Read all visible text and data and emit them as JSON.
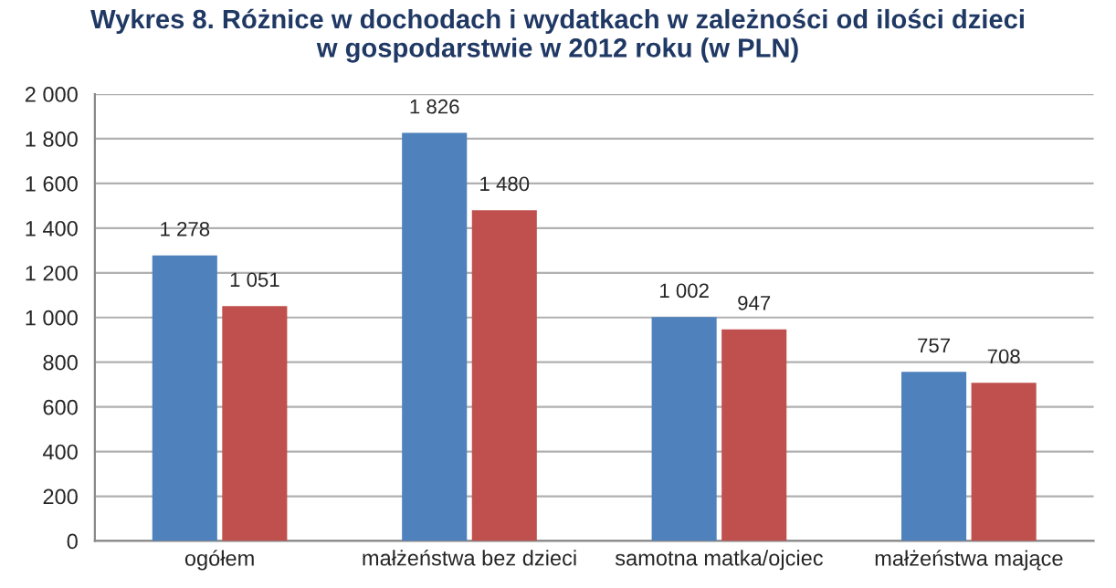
{
  "chart_data": {
    "type": "bar",
    "title": "Wykres 8. Różnice w dochodach i wydatkach w zależności od ilości dzieci\nw gospodarstwie w 2012 roku (w PLN)",
    "categories": [
      "ogółem",
      "małżeństwa bez dzieci",
      "samotna matka/ojciec",
      "małżeństwa mające"
    ],
    "series": [
      {
        "color": "#4f81bd",
        "values": [
          1278,
          1826,
          1002,
          757
        ],
        "value_labels": [
          "1 278",
          "1 826",
          "1 002",
          "757"
        ]
      },
      {
        "color": "#c0504d",
        "values": [
          1051,
          1480,
          947,
          708
        ],
        "value_labels": [
          "1 051",
          "1 480",
          "947",
          "708"
        ]
      }
    ],
    "ylim": [
      0,
      2000
    ],
    "yticks": [
      0,
      200,
      400,
      600,
      800,
      {
        "value": 1000,
        "label": "1 000"
      },
      {
        "value": 1200,
        "label": "1 200"
      },
      {
        "value": 1400,
        "label": "1 400"
      },
      {
        "value": 1600,
        "label": "1 600"
      },
      {
        "value": 1800,
        "label": "1 800"
      },
      {
        "value": 2000,
        "label": "2 000"
      }
    ],
    "grid": "y",
    "legend": false
  }
}
